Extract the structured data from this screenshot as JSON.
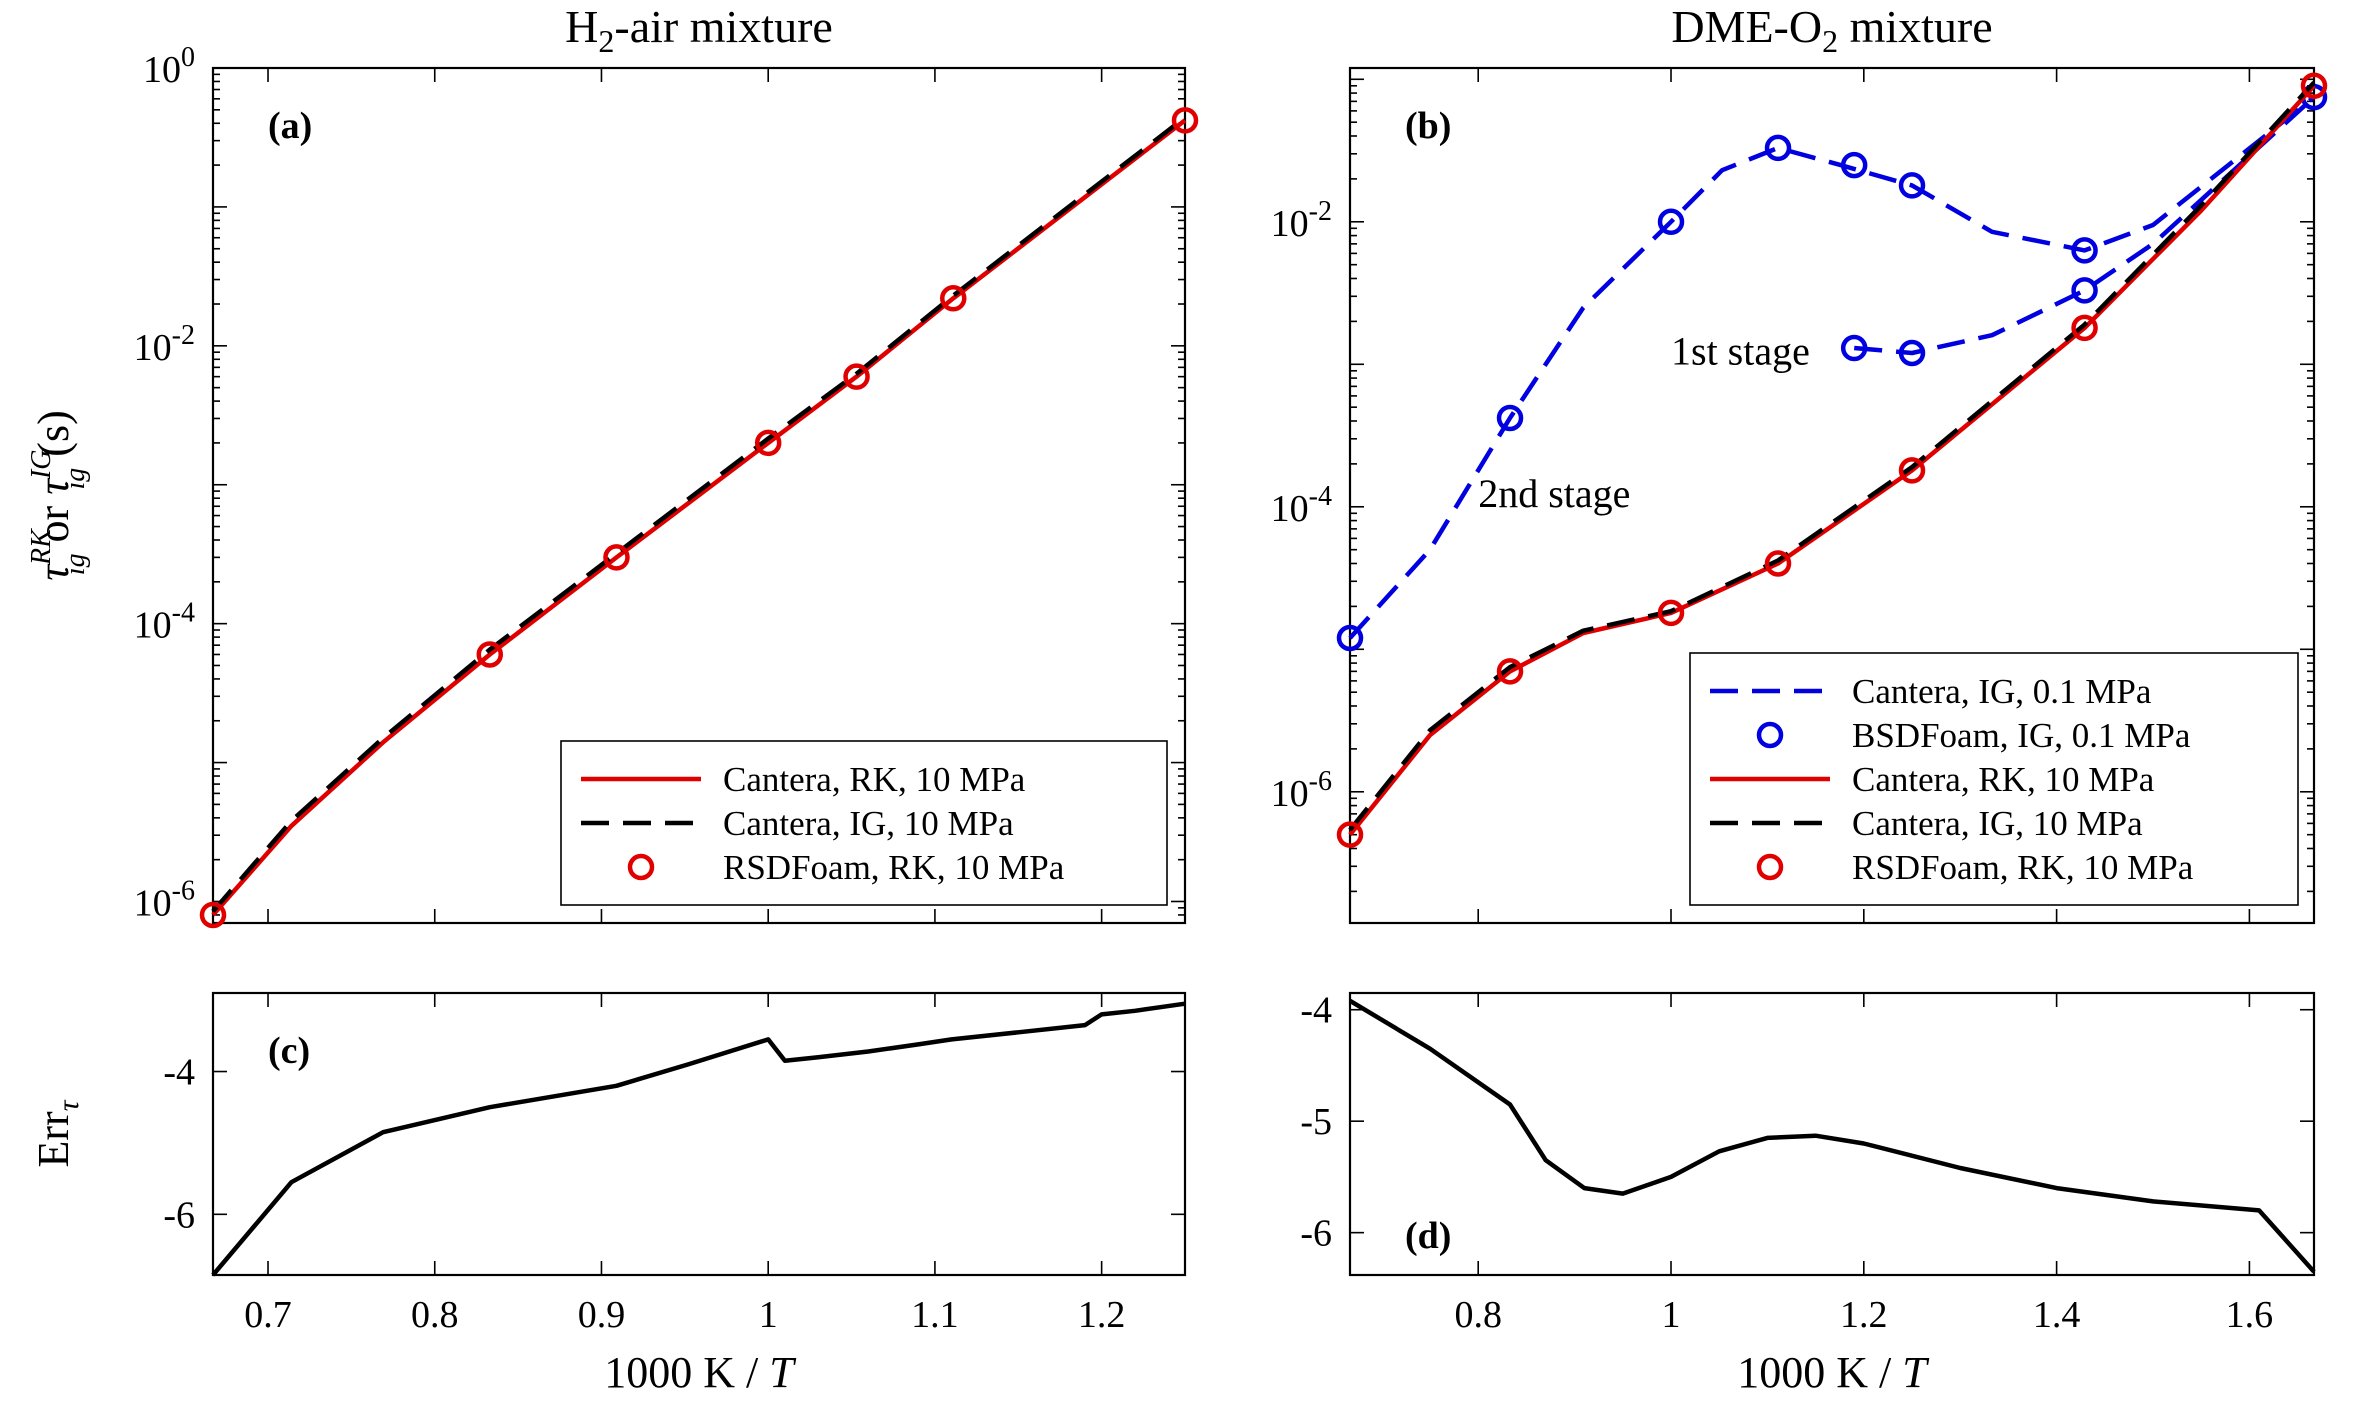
{
  "chart_data": [
    {
      "id": "a",
      "type": "line",
      "panel_label": "(a)",
      "title": "H2-air mixture",
      "title_main": "H",
      "title_sub": "2",
      "title_rest": "-air mixture",
      "ylabel": "τigRK or τigIG (s)",
      "ylabel_parts": {
        "tau": "τ",
        "sub": "ig",
        "sup1": "RK",
        "or": "or",
        "sup2": "IG",
        "unit": "(s)"
      },
      "yscale": "log",
      "xlim": [
        0.667,
        1.25
      ],
      "ylim": [
        7e-07,
        1.0
      ],
      "yticks": [
        1e-06,
        0.0001,
        0.01,
        1
      ],
      "ytick_labels": [
        {
          "base": "10",
          "exp": "-6"
        },
        {
          "base": "10",
          "exp": "-4"
        },
        {
          "base": "10",
          "exp": "-2"
        },
        {
          "base": "10",
          "exp": "0"
        }
      ],
      "legend_position": "lower-right",
      "series": [
        {
          "name": "Cantera, RK, 10 MPa",
          "style": "solid",
          "color": "#e00000",
          "x": [
            0.667,
            0.714,
            0.769,
            0.833,
            0.909,
            1.0,
            1.053,
            1.111,
            1.25
          ],
          "y": [
            8e-07,
            3.5e-06,
            1.4e-05,
            6e-05,
            0.0003,
            0.002,
            0.006,
            0.022,
            0.42
          ]
        },
        {
          "name": "Cantera, IG, 10 MPa",
          "style": "dashed",
          "color": "#000000",
          "x": [
            0.667,
            0.714,
            0.769,
            0.833,
            0.909,
            1.0,
            1.053,
            1.111,
            1.25
          ],
          "y": [
            8.5e-07,
            3.8e-06,
            1.5e-05,
            6.5e-05,
            0.00032,
            0.00215,
            0.0063,
            0.023,
            0.44
          ]
        },
        {
          "name": "RSDFoam, RK, 10 MPa",
          "style": "markers",
          "color": "#e00000",
          "x": [
            0.667,
            0.833,
            0.909,
            1.0,
            1.053,
            1.111,
            1.25
          ],
          "y": [
            8e-07,
            6e-05,
            0.0003,
            0.002,
            0.006,
            0.022,
            0.42
          ]
        }
      ]
    },
    {
      "id": "b",
      "type": "line",
      "panel_label": "(b)",
      "title": "DME-O2 mixture",
      "title_main": "DME-O",
      "title_sub": "2",
      "title_rest": " mixture",
      "ylabel": "",
      "yscale": "log",
      "xlim": [
        0.667,
        1.667
      ],
      "ylim": [
        1.2e-07,
        0.12
      ],
      "yticks": [
        1e-06,
        0.0001,
        0.01
      ],
      "ytick_labels": [
        {
          "base": "10",
          "exp": "-6"
        },
        {
          "base": "10",
          "exp": "-4"
        },
        {
          "base": "10",
          "exp": "-2"
        }
      ],
      "annotations": [
        {
          "text": "1st stage",
          "x": 1.0,
          "y": 0.001
        },
        {
          "text": "2nd stage",
          "x": 0.8,
          "y": 0.0001
        }
      ],
      "legend_position": "lower-right",
      "series": [
        {
          "name": "Cantera, IG, 0.1 MPa",
          "style": "dashed",
          "color": "#0000e0",
          "x": [
            0.667,
            0.75,
            0.833,
            0.909,
            1.0,
            1.053,
            1.111,
            1.176,
            1.25,
            1.333,
            1.429,
            1.5,
            1.667
          ],
          "y": [
            1.2e-05,
            5e-05,
            0.00042,
            0.0025,
            0.01,
            0.023,
            0.033,
            0.025,
            0.018,
            0.0085,
            0.0063,
            0.0095,
            0.075
          ]
        },
        {
          "name": "Cantera, IG, 0.1 MPa 1st stage",
          "style": "dashed",
          "color": "#0000e0",
          "legend": false,
          "x": [
            1.19,
            1.25,
            1.333,
            1.429,
            1.5,
            1.667
          ],
          "y": [
            0.0013,
            0.0012,
            0.0016,
            0.0033,
            0.007,
            0.075
          ]
        },
        {
          "name": "BSDFoam, IG, 0.1 MPa",
          "style": "markers",
          "color": "#0000e0",
          "x": [
            0.667,
            0.833,
            1.0,
            1.111,
            1.19,
            1.25,
            1.429,
            1.19,
            1.25,
            1.429,
            1.667
          ],
          "y": [
            1.2e-05,
            0.00042,
            0.01,
            0.033,
            0.025,
            0.018,
            0.0063,
            0.0013,
            0.0012,
            0.0033,
            0.075
          ]
        },
        {
          "name": "Cantera, RK, 10 MPa",
          "style": "solid",
          "color": "#e00000",
          "x": [
            0.667,
            0.75,
            0.833,
            0.909,
            1.0,
            1.111,
            1.25,
            1.429,
            1.55,
            1.667
          ],
          "y": [
            5e-07,
            2.5e-06,
            7e-06,
            1.3e-05,
            1.8e-05,
            4e-05,
            0.00018,
            0.0018,
            0.012,
            0.09
          ]
        },
        {
          "name": "Cantera, IG, 10 MPa",
          "style": "dashed",
          "color": "#000000",
          "x": [
            0.667,
            0.75,
            0.833,
            0.909,
            1.0,
            1.111,
            1.25,
            1.429,
            1.55,
            1.667
          ],
          "y": [
            5.4e-07,
            2.7e-06,
            7.5e-06,
            1.35e-05,
            1.85e-05,
            4.2e-05,
            0.00019,
            0.0019,
            0.013,
            0.095
          ]
        },
        {
          "name": "RSDFoam, RK, 10 MPa",
          "style": "markers",
          "color": "#e00000",
          "x": [
            0.667,
            0.833,
            1.0,
            1.111,
            1.25,
            1.429,
            1.667
          ],
          "y": [
            5e-07,
            7e-06,
            1.8e-05,
            4e-05,
            0.00018,
            0.0018,
            0.09
          ]
        }
      ]
    },
    {
      "id": "c",
      "type": "line",
      "panel_label": "(c)",
      "xlabel": "1000 K / T",
      "xlabel_parts": {
        "text": "1000 K / ",
        "italic": "T"
      },
      "ylabel": "Errτ",
      "ylabel_parts": {
        "text": "Err",
        "sub": "τ"
      },
      "xlim": [
        0.667,
        1.25
      ],
      "ylim": [
        -6.85,
        -2.9
      ],
      "xticks": [
        0.7,
        0.8,
        0.9,
        1.0,
        1.1,
        1.2
      ],
      "xtick_labels": [
        "0.7",
        "0.8",
        "0.9",
        "1",
        "1.1",
        "1.2"
      ],
      "yticks": [
        -6,
        -4
      ],
      "ytick_labels": [
        "-6",
        "-4"
      ],
      "series": [
        {
          "name": "",
          "style": "solid",
          "color": "#000000",
          "x": [
            0.667,
            0.714,
            0.769,
            0.833,
            0.909,
            0.952,
            1.0,
            1.01,
            1.03,
            1.06,
            1.09,
            1.11,
            1.15,
            1.19,
            1.2,
            1.22,
            1.25
          ],
          "y": [
            -6.85,
            -5.55,
            -4.85,
            -4.5,
            -4.2,
            -3.9,
            -3.55,
            -3.85,
            -3.8,
            -3.72,
            -3.62,
            -3.55,
            -3.45,
            -3.35,
            -3.2,
            -3.15,
            -3.05
          ]
        }
      ]
    },
    {
      "id": "d",
      "type": "line",
      "panel_label": "(d)",
      "xlabel": "1000 K / T",
      "xlabel_parts": {
        "text": "1000 K / ",
        "italic": "T"
      },
      "ylabel": "",
      "xlim": [
        0.667,
        1.667
      ],
      "ylim": [
        -6.38,
        -3.85
      ],
      "xticks": [
        0.8,
        1.0,
        1.2,
        1.4,
        1.6
      ],
      "xtick_labels": [
        "0.8",
        "1",
        "1.2",
        "1.4",
        "1.6"
      ],
      "yticks": [
        -6,
        -5,
        -4
      ],
      "ytick_labels": [
        "-6",
        "-5",
        "-4"
      ],
      "series": [
        {
          "name": "",
          "style": "solid",
          "color": "#000000",
          "x": [
            0.667,
            0.75,
            0.833,
            0.87,
            0.91,
            0.95,
            1.0,
            1.05,
            1.1,
            1.15,
            1.2,
            1.3,
            1.4,
            1.5,
            1.61,
            1.667
          ],
          "y": [
            -3.92,
            -4.35,
            -4.85,
            -5.35,
            -5.6,
            -5.65,
            -5.5,
            -5.27,
            -5.15,
            -5.13,
            -5.2,
            -5.42,
            -5.6,
            -5.72,
            -5.8,
            -6.35
          ]
        }
      ]
    }
  ]
}
